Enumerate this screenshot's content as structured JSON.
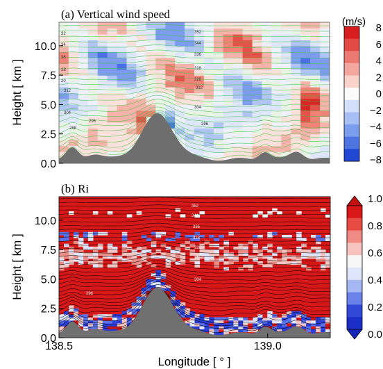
{
  "chart_data": [
    {
      "panel_title": "(a) Vertical wind speed",
      "type": "heatmap",
      "xlabel": "",
      "ylabel": "Height [ km ]",
      "xlim": [
        138.5,
        139.15
      ],
      "ylim": [
        0.0,
        12.0
      ],
      "yticks": [
        "0.0",
        "2.5",
        "5.0",
        "7.5",
        "10.0"
      ],
      "colorbar": {
        "unit": "(m/s)",
        "range": [
          -8,
          8
        ],
        "ticks": [
          "8",
          "6",
          "4",
          "2",
          "0",
          "−2",
          "−4",
          "−6",
          "−8"
        ]
      },
      "contour_color": "#3cc43c",
      "contour_labels": [
        "352",
        "344",
        "336",
        "328",
        "320",
        "312",
        "304",
        "296",
        "288",
        "32",
        "34",
        "36",
        "28",
        "20",
        "312",
        "304",
        "296"
      ],
      "terrain_peak_lon": 138.74,
      "terrain_peak_height_km": 3.8
    },
    {
      "panel_title": "(b) Ri",
      "type": "heatmap",
      "xlabel": "Longitude [ ° ]",
      "ylabel": "Height [ km ]",
      "xlim": [
        138.5,
        139.15
      ],
      "ylim": [
        0.0,
        12.0
      ],
      "xticks": [
        "138.5",
        "139.0"
      ],
      "yticks": [
        "0.0",
        "2.5",
        "5.0",
        "7.5",
        "10.0"
      ],
      "colorbar": {
        "range": [
          0.0,
          1.0
        ],
        "ticks": [
          "1.0",
          "0.8",
          "0.6",
          "0.4",
          "0.2",
          "0.0"
        ],
        "extend": "both"
      },
      "contour_color": "#000000",
      "contour_labels": [
        "352",
        "344",
        "336",
        "328",
        "320",
        "312",
        "304",
        "296"
      ],
      "terrain_peak_lon": 138.74,
      "terrain_peak_height_km": 3.8
    }
  ]
}
